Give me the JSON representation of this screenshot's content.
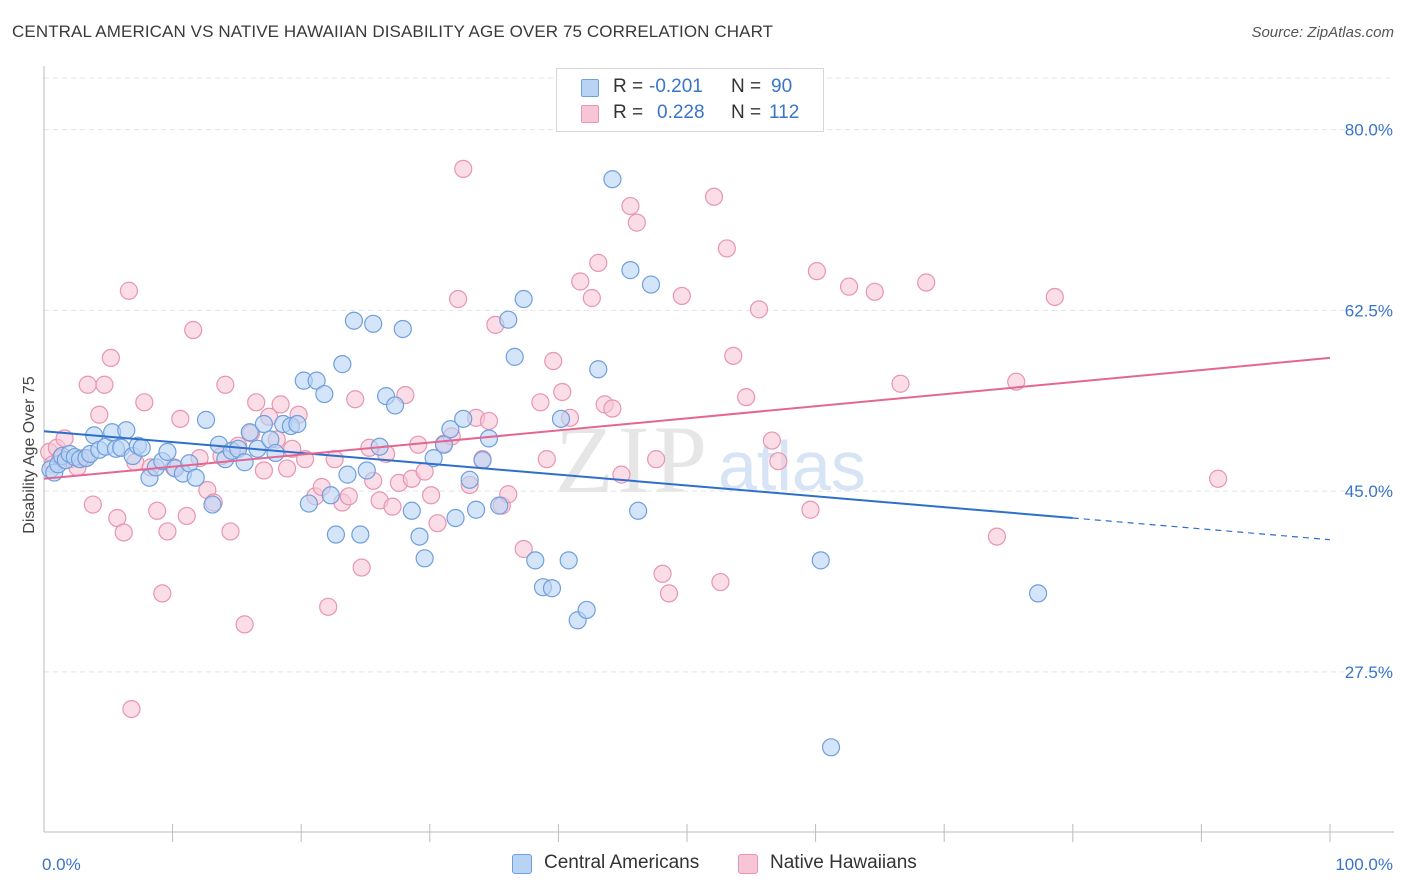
{
  "title": "CENTRAL AMERICAN VS NATIVE HAWAIIAN DISABILITY AGE OVER 75 CORRELATION CHART",
  "source": "Source: ZipAtlas.com",
  "watermark": {
    "zip": "ZIP",
    "atlas": "atlas"
  },
  "legend_top": {
    "rows": [
      {
        "r_label": "R =",
        "r_value": "-0.201",
        "n_label": "N =",
        "n_value": "90"
      },
      {
        "r_label": "R =",
        "r_value": "0.228",
        "n_label": "N =",
        "n_value": "112"
      }
    ]
  },
  "legend_bottom": {
    "items": [
      {
        "label": "Central Americans"
      },
      {
        "label": "Native Hawaiians"
      }
    ]
  },
  "colors": {
    "blue_fill": "#b9d3f5",
    "blue_stroke": "#6f9fdc",
    "blue_line": "#2e6fcc",
    "pink_fill": "#f7c6d6",
    "pink_stroke": "#e895b1",
    "pink_line": "#e36791",
    "axis_label": "#3a74c8",
    "grid": "#e4e4e4"
  },
  "chart_data": {
    "type": "scatter",
    "title": "CENTRAL AMERICAN VS NATIVE HAWAIIAN DISABILITY AGE OVER 75 CORRELATION CHART",
    "xlabel": "",
    "ylabel": "Disability Age Over 75",
    "xlim": [
      0,
      100
    ],
    "ylim": [
      12,
      85
    ],
    "x_tick_labels": [
      "0.0%",
      "100.0%"
    ],
    "y_ticks": [
      27.5,
      45.0,
      62.5,
      80.0
    ],
    "y_tick_labels": [
      "27.5%",
      "45.0%",
      "62.5%",
      "80.0%"
    ],
    "grid": true,
    "legend_position": "top-center",
    "series": [
      {
        "name": "Central Americans",
        "r": -0.201,
        "n": 90,
        "trend": {
          "x0": 0,
          "y0": 50.8,
          "x1": 80,
          "y1": 42.4,
          "dashed_to_x": 100,
          "dashed_to_y": 40.3
        },
        "points": [
          [
            0.5,
            47.1
          ],
          [
            0.8,
            46.8
          ],
          [
            1.1,
            47.6
          ],
          [
            1.4,
            48.4
          ],
          [
            1.7,
            48.0
          ],
          [
            2.0,
            48.6
          ],
          [
            2.4,
            48.3
          ],
          [
            2.8,
            48.1
          ],
          [
            3.3,
            48.2
          ],
          [
            3.6,
            48.6
          ],
          [
            3.9,
            50.4
          ],
          [
            4.3,
            49.0
          ],
          [
            4.8,
            49.3
          ],
          [
            5.3,
            50.7
          ],
          [
            5.6,
            49.1
          ],
          [
            6.0,
            49.2
          ],
          [
            6.4,
            50.9
          ],
          [
            6.9,
            48.4
          ],
          [
            7.3,
            49.4
          ],
          [
            7.6,
            49.2
          ],
          [
            8.2,
            46.3
          ],
          [
            8.7,
            47.3
          ],
          [
            9.2,
            47.9
          ],
          [
            9.6,
            48.8
          ],
          [
            10.2,
            47.2
          ],
          [
            10.8,
            46.7
          ],
          [
            11.3,
            47.7
          ],
          [
            11.8,
            46.3
          ],
          [
            12.6,
            51.9
          ],
          [
            13.1,
            43.7
          ],
          [
            13.6,
            49.5
          ],
          [
            14.1,
            48.1
          ],
          [
            14.6,
            48.9
          ],
          [
            15.1,
            49.1
          ],
          [
            15.6,
            47.8
          ],
          [
            16.0,
            50.7
          ],
          [
            16.6,
            49.1
          ],
          [
            17.1,
            51.5
          ],
          [
            17.6,
            50.0
          ],
          [
            18.0,
            48.7
          ],
          [
            18.6,
            51.5
          ],
          [
            19.2,
            51.3
          ],
          [
            19.7,
            51.5
          ],
          [
            20.2,
            55.7
          ],
          [
            20.6,
            43.8
          ],
          [
            21.2,
            55.7
          ],
          [
            21.8,
            54.4
          ],
          [
            22.3,
            44.6
          ],
          [
            22.7,
            40.8
          ],
          [
            23.2,
            57.3
          ],
          [
            23.6,
            46.6
          ],
          [
            24.1,
            61.5
          ],
          [
            24.6,
            40.8
          ],
          [
            25.1,
            47.0
          ],
          [
            25.6,
            61.2
          ],
          [
            26.1,
            49.3
          ],
          [
            26.6,
            54.2
          ],
          [
            27.3,
            53.3
          ],
          [
            27.9,
            60.7
          ],
          [
            28.6,
            43.1
          ],
          [
            29.2,
            40.6
          ],
          [
            29.6,
            38.5
          ],
          [
            30.3,
            48.2
          ],
          [
            31.1,
            49.5
          ],
          [
            31.6,
            51.0
          ],
          [
            32.0,
            42.4
          ],
          [
            32.6,
            52.0
          ],
          [
            33.1,
            46.1
          ],
          [
            33.6,
            43.2
          ],
          [
            34.1,
            48.0
          ],
          [
            34.6,
            50.1
          ],
          [
            35.4,
            43.6
          ],
          [
            36.1,
            61.6
          ],
          [
            36.6,
            58.0
          ],
          [
            37.3,
            63.6
          ],
          [
            38.2,
            38.3
          ],
          [
            38.8,
            35.7
          ],
          [
            39.5,
            35.6
          ],
          [
            40.2,
            52.0
          ],
          [
            40.8,
            38.3
          ],
          [
            41.5,
            32.5
          ],
          [
            42.2,
            33.5
          ],
          [
            43.1,
            56.8
          ],
          [
            44.2,
            75.2
          ],
          [
            45.6,
            66.4
          ],
          [
            47.2,
            65.0
          ],
          [
            46.2,
            43.1
          ],
          [
            60.4,
            38.3
          ],
          [
            77.3,
            35.1
          ],
          [
            61.2,
            20.2
          ]
        ]
      },
      {
        "name": "Native Hawaiians",
        "r": 0.228,
        "n": 112,
        "trend": {
          "x0": 0,
          "y0": 46.2,
          "x1": 100,
          "y1": 57.9
        },
        "points": [
          [
            0.4,
            48.8
          ],
          [
            0.7,
            47.6
          ],
          [
            1.0,
            49.2
          ],
          [
            1.3,
            48.2
          ],
          [
            1.6,
            50.1
          ],
          [
            2.1,
            48.1
          ],
          [
            2.6,
            47.3
          ],
          [
            3.1,
            48.2
          ],
          [
            3.4,
            55.3
          ],
          [
            3.8,
            43.7
          ],
          [
            4.3,
            52.4
          ],
          [
            4.7,
            55.3
          ],
          [
            5.2,
            57.9
          ],
          [
            5.7,
            42.4
          ],
          [
            6.2,
            41.0
          ],
          [
            6.6,
            64.4
          ],
          [
            7.1,
            47.8
          ],
          [
            7.8,
            53.6
          ],
          [
            8.3,
            47.3
          ],
          [
            8.8,
            43.1
          ],
          [
            9.2,
            35.1
          ],
          [
            9.6,
            41.1
          ],
          [
            10.1,
            47.3
          ],
          [
            10.6,
            52.0
          ],
          [
            11.1,
            42.6
          ],
          [
            11.6,
            60.6
          ],
          [
            12.1,
            48.2
          ],
          [
            12.7,
            45.1
          ],
          [
            13.2,
            43.9
          ],
          [
            13.8,
            48.4
          ],
          [
            14.1,
            55.3
          ],
          [
            14.5,
            41.1
          ],
          [
            15.1,
            49.4
          ],
          [
            15.6,
            32.1
          ],
          [
            16.1,
            50.6
          ],
          [
            16.5,
            53.6
          ],
          [
            17.1,
            47.0
          ],
          [
            17.5,
            52.2
          ],
          [
            18.1,
            50.0
          ],
          [
            18.4,
            53.4
          ],
          [
            18.9,
            47.2
          ],
          [
            19.3,
            49.1
          ],
          [
            19.8,
            52.4
          ],
          [
            20.3,
            48.1
          ],
          [
            21.1,
            44.5
          ],
          [
            21.6,
            45.4
          ],
          [
            22.1,
            33.8
          ],
          [
            22.6,
            48.1
          ],
          [
            23.2,
            43.9
          ],
          [
            23.7,
            44.5
          ],
          [
            24.2,
            53.9
          ],
          [
            24.7,
            37.6
          ],
          [
            25.3,
            49.2
          ],
          [
            25.6,
            46.0
          ],
          [
            26.1,
            44.1
          ],
          [
            26.6,
            48.6
          ],
          [
            27.1,
            43.5
          ],
          [
            27.6,
            45.8
          ],
          [
            28.1,
            54.3
          ],
          [
            28.6,
            46.2
          ],
          [
            29.1,
            49.5
          ],
          [
            29.6,
            46.9
          ],
          [
            30.1,
            44.6
          ],
          [
            30.6,
            41.9
          ],
          [
            31.1,
            49.6
          ],
          [
            31.7,
            50.3
          ],
          [
            32.2,
            63.6
          ],
          [
            32.6,
            76.2
          ],
          [
            33.1,
            45.6
          ],
          [
            33.6,
            52.1
          ],
          [
            34.1,
            48.1
          ],
          [
            34.6,
            51.8
          ],
          [
            35.1,
            61.1
          ],
          [
            35.6,
            43.6
          ],
          [
            36.1,
            44.7
          ],
          [
            37.3,
            39.4
          ],
          [
            38.6,
            53.6
          ],
          [
            39.1,
            48.1
          ],
          [
            39.6,
            57.6
          ],
          [
            40.3,
            54.6
          ],
          [
            40.9,
            52.1
          ],
          [
            41.7,
            65.3
          ],
          [
            42.6,
            63.7
          ],
          [
            43.1,
            67.1
          ],
          [
            43.6,
            53.4
          ],
          [
            44.2,
            53.0
          ],
          [
            44.9,
            46.6
          ],
          [
            45.6,
            72.6
          ],
          [
            46.1,
            71.0
          ],
          [
            47.6,
            48.1
          ],
          [
            48.1,
            37.0
          ],
          [
            48.6,
            35.1
          ],
          [
            49.6,
            63.9
          ],
          [
            52.1,
            73.5
          ],
          [
            52.6,
            36.2
          ],
          [
            53.1,
            68.5
          ],
          [
            53.6,
            58.1
          ],
          [
            54.6,
            54.1
          ],
          [
            55.6,
            62.6
          ],
          [
            56.6,
            49.9
          ],
          [
            57.1,
            47.9
          ],
          [
            59.6,
            43.2
          ],
          [
            60.1,
            66.3
          ],
          [
            62.6,
            64.8
          ],
          [
            64.6,
            64.3
          ],
          [
            66.6,
            55.4
          ],
          [
            68.6,
            65.2
          ],
          [
            74.1,
            40.6
          ],
          [
            75.6,
            55.6
          ],
          [
            78.6,
            63.8
          ],
          [
            91.3,
            46.2
          ],
          [
            6.8,
            23.9
          ]
        ]
      }
    ]
  }
}
